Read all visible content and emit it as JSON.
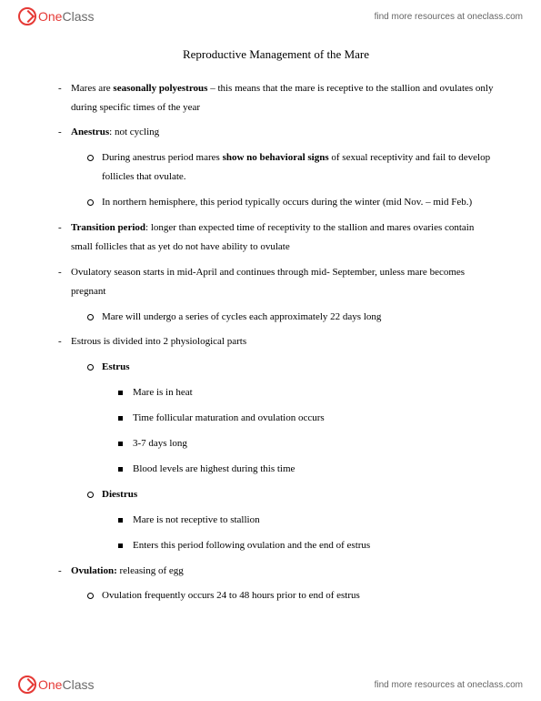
{
  "brand": {
    "one": "One",
    "class": "Class"
  },
  "resource_text": "find more resources at oneclass.com",
  "title": "Reproductive Management of the Mare",
  "bullets": {
    "b1a": "Mares are ",
    "b1b": "seasonally polyestrous",
    "b1c": " – this means that the mare is receptive to the stallion and ovulates only during specific times of the year",
    "b2a": "Anestrus",
    "b2b": ": not cycling",
    "b2_1a": "During anestrus period mares ",
    "b2_1b": "show no behavioral signs",
    "b2_1c": " of sexual receptivity and fail to develop follicles that ovulate.",
    "b2_2": "In northern hemisphere, this period typically occurs during the winter (mid Nov. – mid Feb.)",
    "b3a": "Transition period",
    "b3b": ": longer than expected time of receptivity to the stallion and mares ovaries contain small follicles that as yet do not have ability to ovulate",
    "b4": "Ovulatory season starts in mid-April and continues through mid- September, unless mare becomes pregnant",
    "b4_1": "Mare will undergo a series of cycles each approximately 22 days long",
    "b5": "Estrous is divided into 2 physiological parts",
    "b5_1": "Estrus",
    "b5_1_1": "Mare is in heat",
    "b5_1_2": "Time follicular maturation and ovulation occurs",
    "b5_1_3": "3-7 days long",
    "b5_1_4": "Blood levels are highest during this time",
    "b5_2": "Diestrus",
    "b5_2_1": "Mare is not receptive to stallion",
    "b5_2_2": "Enters this period following ovulation and the end of estrus",
    "b6a": "Ovulation:",
    "b6b": " releasing of egg",
    "b6_1": "Ovulation frequently occurs 24 to 48 hours prior to end of estrus"
  }
}
